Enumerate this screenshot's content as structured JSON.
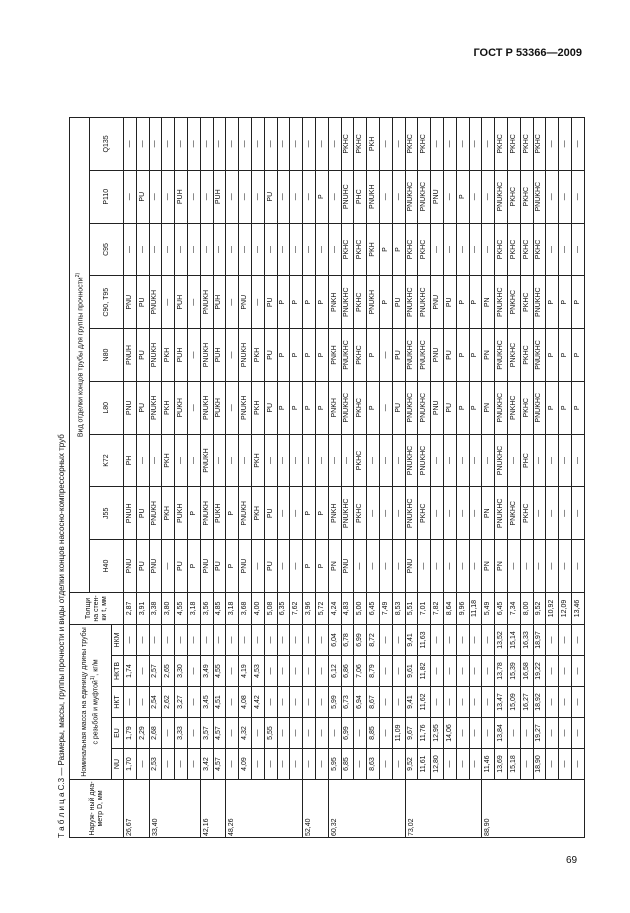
{
  "header": {
    "title": "ГОСТ Р 53366—2009"
  },
  "caption": "Т а б л и ц а  С.3 — Размеры, массы, группы прочности и виды отделки концов насосно-компрессорных труб",
  "table": {
    "diameter_header": "Наруж- ный диа- метр D, мм",
    "mass_header": "Номинальная масса на единицу длины трубы с резьбой и муфтой",
    "mass_note": "1)",
    "mass_unit": ", кг/м",
    "mass_columns": [
      "NU",
      "EU",
      "НКТ",
      "НКТВ",
      "НКМ"
    ],
    "thickness_header": "Толщи на стен- ки t, мм",
    "finish_header": "Вид отделки концов трубы для группы прочности",
    "finish_note": "2)",
    "grades": [
      "Н40",
      "J55",
      "K72",
      "L80",
      "N80",
      "С90, Т95",
      "С95",
      "Р110",
      "Q135"
    ],
    "groups": [
      {
        "diameter": "26,67",
        "rows": [
          [
            "1,70",
            "1,79",
            "—",
            "1,74",
            "—",
            "2,87",
            "PNU",
            "PNUH",
            "PH",
            "PNU",
            "PNUH",
            "PNU",
            "—",
            "—",
            "—"
          ],
          [
            "—",
            "2,29",
            "—",
            "—",
            "—",
            "3,91",
            "PU",
            "PU",
            "—",
            "PU",
            "PU",
            "PU",
            "—",
            "PU",
            "—"
          ]
        ]
      },
      {
        "diameter": "33,40",
        "rows": [
          [
            "2,53",
            "2,68",
            "2,54",
            "2,57",
            "—",
            "3,38",
            "PNU",
            "PNUKH",
            "—",
            "PNUKH",
            "PNUKH",
            "PNUKH",
            "—",
            "—",
            "—"
          ],
          [
            "—",
            "—",
            "2,62",
            "2,65",
            "—",
            "3,80",
            "—",
            "PKH",
            "PKH",
            "PKH",
            "PKH",
            "—",
            "—",
            "—",
            "—"
          ],
          [
            "—",
            "3,33",
            "3,27",
            "3,30",
            "—",
            "4,55",
            "PU",
            "PUKH",
            "—",
            "PUKH",
            "PUH",
            "PUH",
            "—",
            "PUH",
            "—"
          ],
          [
            "—",
            "—",
            "—",
            "—",
            "—",
            "3,18",
            "P",
            "P",
            "—",
            "—",
            "—",
            "—",
            "—",
            "—",
            "—"
          ]
        ]
      },
      {
        "diameter": "42,16",
        "rows": [
          [
            "3,42",
            "3,57",
            "3,45",
            "3,49",
            "—",
            "3,56",
            "PNU",
            "PNUKH",
            "PNUKH",
            "PNUKH",
            "PNUKH",
            "PNUKH",
            "—",
            "—",
            "—"
          ],
          [
            "4,57",
            "4,57",
            "4,51",
            "4,55",
            "—",
            "4,85",
            "PU",
            "PUKH",
            "—",
            "PUKH",
            "PUH",
            "PUH",
            "—",
            "PUH",
            "—"
          ]
        ]
      },
      {
        "diameter": "48,26",
        "rows": [
          [
            "—",
            "—",
            "—",
            "—",
            "—",
            "3,18",
            "P",
            "P",
            "—",
            "—",
            "—",
            "—",
            "—",
            "—",
            "—"
          ],
          [
            "4,09",
            "4,32",
            "4,08",
            "4,19",
            "—",
            "3,68",
            "PNU",
            "PNUKH",
            "—",
            "PNUKH",
            "PNUKH",
            "PNU",
            "—",
            "—",
            "—"
          ],
          [
            "—",
            "—",
            "4,42",
            "4,53",
            "—",
            "4,00",
            "—",
            "PKH",
            "PKH",
            "PKH",
            "PKH",
            "—",
            "—",
            "—",
            "—"
          ],
          [
            "—",
            "5,55",
            "—",
            "—",
            "—",
            "5,08",
            "PU",
            "PU",
            "—",
            "PU",
            "PU",
            "PU",
            "—",
            "PU",
            "—"
          ],
          [
            "—",
            "—",
            "—",
            "—",
            "—",
            "6,35",
            "—",
            "—",
            "—",
            "P",
            "P",
            "P",
            "—",
            "—",
            "—"
          ],
          [
            "—",
            "—",
            "—",
            "—",
            "—",
            "7,62",
            "—",
            "—",
            "—",
            "P",
            "P",
            "P",
            "—",
            "—",
            "—"
          ]
        ]
      },
      {
        "diameter": "52,40",
        "rows": [
          [
            "—",
            "—",
            "—",
            "—",
            "—",
            "3,96",
            "P",
            "P",
            "—",
            "P",
            "P",
            "P",
            "—",
            "—",
            "—"
          ],
          [
            "—",
            "—",
            "—",
            "—",
            "—",
            "5,72",
            "P",
            "P",
            "—",
            "P",
            "P",
            "P",
            "—",
            "P",
            "—"
          ]
        ]
      },
      {
        "diameter": "60,32",
        "rows": [
          [
            "5,95",
            "—",
            "5,99",
            "6,12",
            "6,04",
            "4,24",
            "PN",
            "PNKH",
            "—",
            "PNKH",
            "PNKH",
            "PNKH",
            "—",
            "—",
            "—"
          ],
          [
            "6,85",
            "6,99",
            "6,73",
            "6,86",
            "6,78",
            "4,83",
            "PNU",
            "PNUKHC",
            "—",
            "PNUKHC",
            "PNUKHC",
            "PNUKHC",
            "PKHC",
            "PNUHC",
            "PKHC"
          ],
          [
            "—",
            "—",
            "6,94",
            "7,06",
            "6,99",
            "5,00",
            "—",
            "PKHC",
            "PKHC",
            "PKHC",
            "PKHC",
            "PKHC",
            "PKHC",
            "PHC",
            "PKHC"
          ],
          [
            "8,63",
            "8,85",
            "8,67",
            "8,79",
            "8,72",
            "6,45",
            "—",
            "—",
            "—",
            "P",
            "P",
            "PNUKH",
            "PKH",
            "PNUKH",
            "PKH"
          ],
          [
            "—",
            "—",
            "—",
            "—",
            "—",
            "7,49",
            "—",
            "—",
            "—",
            "—",
            "—",
            "P",
            "P",
            "—",
            "—"
          ],
          [
            "—",
            "11,09",
            "—",
            "—",
            "—",
            "8,53",
            "—",
            "—",
            "—",
            "PU",
            "PU",
            "PU",
            "P",
            "—",
            "—"
          ]
        ]
      },
      {
        "diameter": "73,02",
        "rows": [
          [
            "9,52",
            "9,67",
            "9,41",
            "9,61",
            "9,41",
            "5,51",
            "PNU",
            "PNUKHC",
            "PNUKHC",
            "PNUKHC",
            "PNUKHC",
            "PNUKHC",
            "PKHC",
            "PNUKHC",
            "PKHC"
          ],
          [
            "11,61",
            "11,76",
            "11,62",
            "11,82",
            "11,63",
            "7,01",
            "—",
            "PKHC",
            "PNUKHC",
            "PNUKHC",
            "PNUKHC",
            "PNUKHC",
            "PKHC",
            "PNUKHC",
            "PKHC"
          ],
          [
            "12,80",
            "12,95",
            "—",
            "—",
            "—",
            "7,82",
            "—",
            "—",
            "—",
            "PNU",
            "PNU",
            "PNU",
            "—",
            "PNU",
            "—"
          ],
          [
            "—",
            "14,06",
            "—",
            "—",
            "—",
            "8,64",
            "—",
            "—",
            "—",
            "PU",
            "PU",
            "PU",
            "—",
            "—",
            "—"
          ],
          [
            "—",
            "—",
            "—",
            "—",
            "—",
            "9,96",
            "—",
            "—",
            "—",
            "P",
            "P",
            "P",
            "—",
            "P",
            "—"
          ],
          [
            "—",
            "—",
            "—",
            "—",
            "—",
            "11,18",
            "—",
            "—",
            "—",
            "P",
            "P",
            "P",
            "—",
            "—",
            "—"
          ]
        ]
      },
      {
        "diameter": "88,90",
        "rows": [
          [
            "11,46",
            "—",
            "—",
            "—",
            "—",
            "5,49",
            "PN",
            "PN",
            "—",
            "PN",
            "PN",
            "PN",
            "—",
            "—",
            "—"
          ],
          [
            "13,69",
            "13,84",
            "13,47",
            "13,78",
            "13,52",
            "6,45",
            "PN",
            "PNUKHC",
            "PNUKHC",
            "PNUKHC",
            "PNUKHC",
            "PNUKHC",
            "PKHC",
            "PNUKHC",
            "PKHC"
          ],
          [
            "15,18",
            "—",
            "15,09",
            "15,39",
            "15,14",
            "7,34",
            "—",
            "PNKHC",
            "—",
            "PNKHC",
            "PNKHC",
            "PNKHC",
            "PKHC",
            "PKHC",
            "PKHC"
          ],
          [
            "—",
            "—",
            "16,27",
            "16,58",
            "16,33",
            "8,00",
            "—",
            "PKHC",
            "PHC",
            "PKHC",
            "PKHC",
            "PKHC",
            "PKHC",
            "PKHC",
            "PKHC"
          ],
          [
            "18,90",
            "19,27",
            "18,92",
            "19,22",
            "18,97",
            "9,52",
            "—",
            "—",
            "—",
            "PNUKHC",
            "PNUKHC",
            "PNUKHC",
            "PKHC",
            "PNUKHC",
            "PKHC"
          ],
          [
            "—",
            "—",
            "—",
            "—",
            "—",
            "10,92",
            "—",
            "—",
            "—",
            "P",
            "P",
            "P",
            "—",
            "—",
            "—"
          ],
          [
            "—",
            "—",
            "—",
            "—",
            "—",
            "12,09",
            "—",
            "—",
            "—",
            "P",
            "P",
            "P",
            "—",
            "—",
            "—"
          ],
          [
            "—",
            "—",
            "—",
            "—",
            "—",
            "13,46",
            "—",
            "—",
            "—",
            "P",
            "P",
            "P",
            "—",
            "—",
            "—"
          ]
        ]
      }
    ]
  },
  "footer": {
    "page_number": "69"
  }
}
